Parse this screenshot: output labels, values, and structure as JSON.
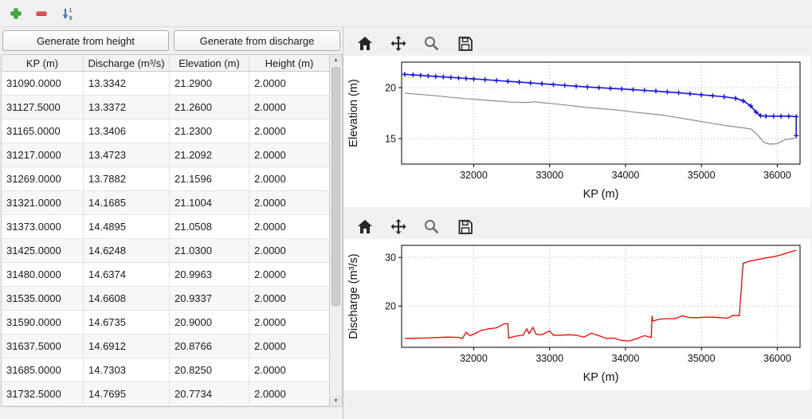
{
  "top_toolbar": {
    "icons": [
      "add-icon",
      "remove-icon",
      "sort-ascending-icon"
    ],
    "sort_labels": [
      "1",
      "9"
    ],
    "add_color": "#3fae3f",
    "remove_color": "#e25555",
    "sort_color": "#4a7ab5"
  },
  "left_panel": {
    "generate_height_button": "Generate from height",
    "generate_discharge_button": "Generate from discharge",
    "table": {
      "headers": [
        "KP (m)",
        "Discharge (m³/s)",
        "Elevation (m)",
        "Height (m)"
      ],
      "rows": [
        [
          "31090.0000",
          "13.3342",
          "21.2900",
          "2.0000"
        ],
        [
          "31127.5000",
          "13.3372",
          "21.2600",
          "2.0000"
        ],
        [
          "31165.0000",
          "13.3406",
          "21.2300",
          "2.0000"
        ],
        [
          "31217.0000",
          "13.4723",
          "21.2092",
          "2.0000"
        ],
        [
          "31269.0000",
          "13.7882",
          "21.1596",
          "2.0000"
        ],
        [
          "31321.0000",
          "14.1685",
          "21.1004",
          "2.0000"
        ],
        [
          "31373.0000",
          "14.4895",
          "21.0508",
          "2.0000"
        ],
        [
          "31425.0000",
          "14.6248",
          "21.0300",
          "2.0000"
        ],
        [
          "31480.0000",
          "14.6374",
          "20.9963",
          "2.0000"
        ],
        [
          "31535.0000",
          "14.6608",
          "20.9337",
          "2.0000"
        ],
        [
          "31590.0000",
          "14.6735",
          "20.9000",
          "2.0000"
        ],
        [
          "31637.5000",
          "14.6912",
          "20.8766",
          "2.0000"
        ],
        [
          "31685.0000",
          "14.7303",
          "20.8250",
          "2.0000"
        ],
        [
          "31732.5000",
          "14.7695",
          "20.7734",
          "2.0000"
        ]
      ]
    }
  },
  "plot_toolbar": {
    "icons": [
      "home-icon",
      "move-icon",
      "zoom-icon",
      "save-icon"
    ]
  },
  "chart_data": [
    {
      "type": "line",
      "title": "",
      "xlabel": "KP (m)",
      "ylabel": "Elevation (m)",
      "xlim": [
        31050,
        36300
      ],
      "ylim": [
        12.5,
        22.5
      ],
      "xticks": [
        32000,
        33000,
        34000,
        35000,
        36000
      ],
      "yticks": [
        15,
        20
      ],
      "grid": true,
      "legend": false,
      "series": [
        {
          "name": "blue-crest-line",
          "color": "#1414e6",
          "width": 1.6,
          "marker": "plus",
          "x": [
            31090,
            31200,
            31300,
            31400,
            31500,
            31600,
            31700,
            31800,
            31900,
            32000,
            32150,
            32300,
            32450,
            32600,
            32750,
            32900,
            33050,
            33200,
            33350,
            33500,
            33650,
            33800,
            33950,
            34100,
            34250,
            34400,
            34550,
            34700,
            34850,
            35000,
            35150,
            35300,
            35450,
            35550,
            35650,
            35720,
            35780,
            35850,
            35950,
            36050,
            36150,
            36250,
            36250
          ],
          "y": [
            21.3,
            21.25,
            21.2,
            21.15,
            21.1,
            21.05,
            21.0,
            20.95,
            20.9,
            20.85,
            20.78,
            20.7,
            20.62,
            20.54,
            20.46,
            20.38,
            20.3,
            20.22,
            20.14,
            20.06,
            19.99,
            19.93,
            19.87,
            19.8,
            19.73,
            19.66,
            19.58,
            19.5,
            19.4,
            19.3,
            19.2,
            19.1,
            18.95,
            18.7,
            18.2,
            17.6,
            17.25,
            17.2,
            17.2,
            17.2,
            17.2,
            17.15,
            15.3
          ]
        },
        {
          "name": "gray-bed-line",
          "color": "#8c8c8c",
          "width": 1.2,
          "marker": null,
          "x": [
            31090,
            31300,
            31500,
            31700,
            31900,
            32100,
            32300,
            32500,
            32700,
            32800,
            32900,
            33100,
            33300,
            33500,
            33700,
            33900,
            34100,
            34300,
            34500,
            34700,
            34900,
            35100,
            35300,
            35500,
            35650,
            35750,
            35820,
            35900,
            36000,
            36100,
            36250
          ],
          "y": [
            19.45,
            19.32,
            19.2,
            19.05,
            18.92,
            18.8,
            18.68,
            18.58,
            18.55,
            18.6,
            18.52,
            18.38,
            18.22,
            18.05,
            17.92,
            17.8,
            17.6,
            17.45,
            17.3,
            17.05,
            16.8,
            16.55,
            16.3,
            16.1,
            15.95,
            15.3,
            14.65,
            14.45,
            14.5,
            14.9,
            15.05
          ]
        }
      ]
    },
    {
      "type": "line",
      "title": "",
      "xlabel": "KP (m)",
      "ylabel": "Discharge (m³/s)",
      "xlim": [
        31050,
        36300
      ],
      "ylim": [
        11.5,
        32.5
      ],
      "xticks": [
        32000,
        33000,
        34000,
        35000,
        36000
      ],
      "yticks": [
        20,
        30
      ],
      "grid": true,
      "legend": false,
      "series": [
        {
          "name": "red-discharge-line",
          "color": "#ff0000",
          "width": 1.3,
          "marker": null,
          "x": [
            31090,
            31200,
            31350,
            31500,
            31650,
            31800,
            31850,
            31900,
            31950,
            32000,
            32100,
            32200,
            32300,
            32400,
            32450,
            32460,
            32550,
            32650,
            32700,
            32730,
            32780,
            32820,
            32900,
            33000,
            33050,
            33150,
            33250,
            33350,
            33450,
            33550,
            33650,
            33750,
            33850,
            33950,
            34050,
            34150,
            34250,
            34340,
            34350,
            34360,
            34450,
            34550,
            34650,
            34750,
            34850,
            34950,
            35050,
            35150,
            35250,
            35350,
            35420,
            35500,
            35550,
            35650,
            35750,
            35850,
            36000,
            36100,
            36250
          ],
          "y": [
            13.3,
            13.35,
            13.4,
            13.5,
            13.6,
            13.55,
            13.3,
            14.6,
            13.9,
            14.2,
            15.0,
            15.3,
            15.5,
            16.3,
            16.4,
            13.4,
            13.8,
            14.0,
            15.3,
            14.3,
            15.6,
            14.2,
            14.1,
            14.9,
            14.0,
            14.0,
            14.1,
            14.0,
            13.6,
            14.4,
            13.9,
            13.3,
            13.4,
            12.9,
            12.8,
            13.3,
            13.9,
            13.5,
            18.0,
            16.9,
            17.3,
            17.4,
            17.4,
            18.0,
            17.6,
            17.6,
            17.7,
            17.7,
            17.6,
            17.5,
            18.1,
            18.0,
            28.8,
            29.3,
            29.6,
            29.9,
            30.3,
            30.8,
            31.5
          ]
        }
      ]
    }
  ]
}
